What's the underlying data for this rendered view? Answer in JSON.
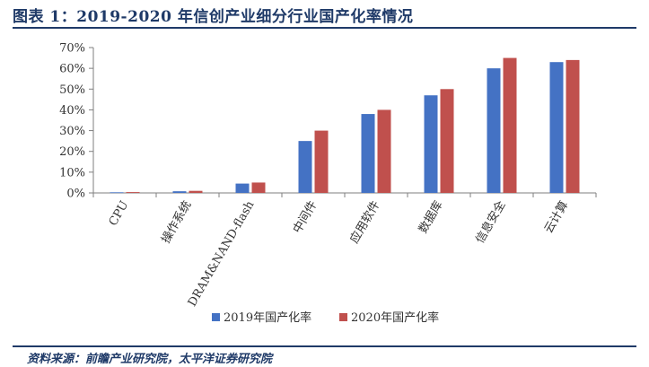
{
  "header": {
    "title": "图表 1：2019-2020 年信创产业细分行业国产化率情况"
  },
  "footer": {
    "source": "资料来源：前瞻产业研究院，太平洋证券研究院"
  },
  "colors": {
    "series_2019": "#4472c4",
    "series_2020": "#c0504d",
    "axis": "#7f7f7f",
    "accent": "#1f3a68"
  },
  "chart_data": {
    "type": "bar",
    "title": "",
    "xlabel": "",
    "ylabel": "",
    "ylim": [
      0,
      70
    ],
    "yticks": [
      0,
      10,
      20,
      30,
      40,
      50,
      60,
      70
    ],
    "ytick_labels": [
      "0%",
      "10%",
      "20%",
      "30%",
      "40%",
      "50%",
      "60%",
      "70%"
    ],
    "grid": false,
    "legend_position": "bottom",
    "categories": [
      "CPU",
      "操作系统",
      "DRAM&NAND-flash",
      "中间件",
      "应用软件",
      "数据库",
      "信息安全",
      "云计算"
    ],
    "series": [
      {
        "name": "2019年国产化率",
        "values": [
          0.3,
          0.8,
          4.5,
          25,
          38,
          47,
          60,
          63
        ]
      },
      {
        "name": "2020年国产化率",
        "values": [
          0.4,
          1.0,
          5.0,
          30,
          40,
          50,
          65,
          64
        ]
      }
    ]
  }
}
